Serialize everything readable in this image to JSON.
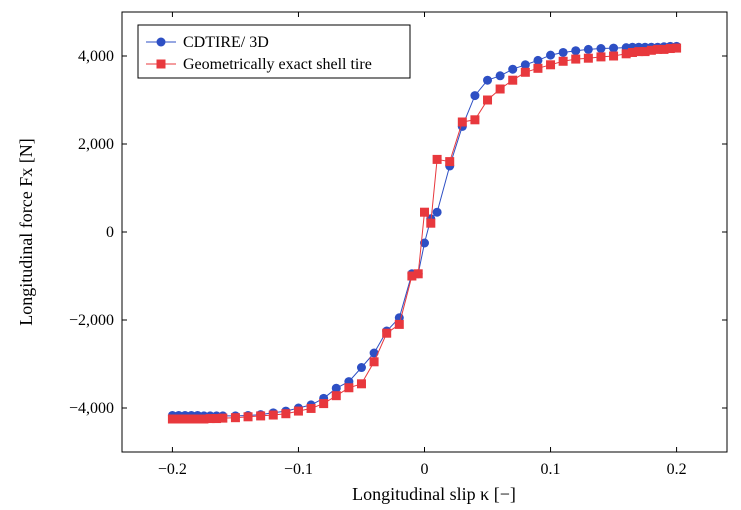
{
  "chart_data": {
    "type": "line",
    "xlabel": "Longitudinal slip κ [−]",
    "ylabel": "Longitudinal force Fx [N]",
    "xlim": [
      -0.24,
      0.24
    ],
    "ylim": [
      -5000,
      5000
    ],
    "xticks": [
      -0.2,
      -0.1,
      0,
      0.1,
      0.2
    ],
    "xtick_labels": [
      "−0.2",
      "−0.1",
      "0",
      "0.1",
      "0.2"
    ],
    "yticks": [
      -4000,
      -2000,
      0,
      2000,
      4000
    ],
    "ytick_labels": [
      "−4,000",
      "−2,000",
      "0",
      "2,000",
      "4,000"
    ],
    "grid": false,
    "legend_position": "top-left",
    "series": [
      {
        "name": "CDTIRE/ 3D",
        "color": "#2d4fc4",
        "marker": "circle",
        "x": [
          -0.2,
          -0.195,
          -0.19,
          -0.185,
          -0.18,
          -0.175,
          -0.17,
          -0.165,
          -0.16,
          -0.15,
          -0.14,
          -0.13,
          -0.12,
          -0.11,
          -0.1,
          -0.09,
          -0.08,
          -0.07,
          -0.06,
          -0.05,
          -0.04,
          -0.03,
          -0.02,
          -0.01,
          -0.005,
          0,
          0.005,
          0.01,
          0.02,
          0.03,
          0.04,
          0.05,
          0.06,
          0.07,
          0.08,
          0.09,
          0.1,
          0.11,
          0.12,
          0.13,
          0.14,
          0.15,
          0.16,
          0.165,
          0.17,
          0.175,
          0.18,
          0.185,
          0.19,
          0.195,
          0.2
        ],
        "y": [
          -4170,
          -4170,
          -4170,
          -4170,
          -4170,
          -4180,
          -4180,
          -4180,
          -4180,
          -4180,
          -4170,
          -4150,
          -4110,
          -4070,
          -4000,
          -3930,
          -3780,
          -3550,
          -3400,
          -3080,
          -2750,
          -2250,
          -1950,
          -950,
          -950,
          -250,
          300,
          450,
          1500,
          2400,
          3100,
          3450,
          3550,
          3700,
          3800,
          3900,
          4020,
          4080,
          4120,
          4150,
          4170,
          4180,
          4190,
          4200,
          4200,
          4200,
          4200,
          4200,
          4210,
          4220,
          4220
        ]
      },
      {
        "name": "Geometrically exact shell tire",
        "color": "#e8383d",
        "marker": "square",
        "x": [
          -0.2,
          -0.195,
          -0.19,
          -0.185,
          -0.18,
          -0.175,
          -0.17,
          -0.165,
          -0.16,
          -0.15,
          -0.14,
          -0.13,
          -0.12,
          -0.11,
          -0.1,
          -0.09,
          -0.08,
          -0.07,
          -0.06,
          -0.05,
          -0.04,
          -0.03,
          -0.02,
          -0.01,
          -0.005,
          0,
          0.005,
          0.01,
          0.02,
          0.03,
          0.04,
          0.05,
          0.06,
          0.07,
          0.08,
          0.09,
          0.1,
          0.11,
          0.12,
          0.13,
          0.14,
          0.15,
          0.16,
          0.165,
          0.17,
          0.175,
          0.18,
          0.185,
          0.19,
          0.195,
          0.2
        ],
        "y": [
          -4250,
          -4250,
          -4250,
          -4250,
          -4250,
          -4250,
          -4240,
          -4240,
          -4230,
          -4220,
          -4200,
          -4180,
          -4160,
          -4130,
          -4070,
          -4010,
          -3900,
          -3720,
          -3540,
          -3450,
          -2950,
          -2300,
          -2100,
          -1000,
          -950,
          450,
          200,
          1650,
          1600,
          2500,
          2550,
          3000,
          3250,
          3450,
          3630,
          3720,
          3800,
          3880,
          3930,
          3950,
          3980,
          4000,
          4050,
          4080,
          4100,
          4100,
          4130,
          4150,
          4150,
          4170,
          4180
        ]
      }
    ]
  }
}
